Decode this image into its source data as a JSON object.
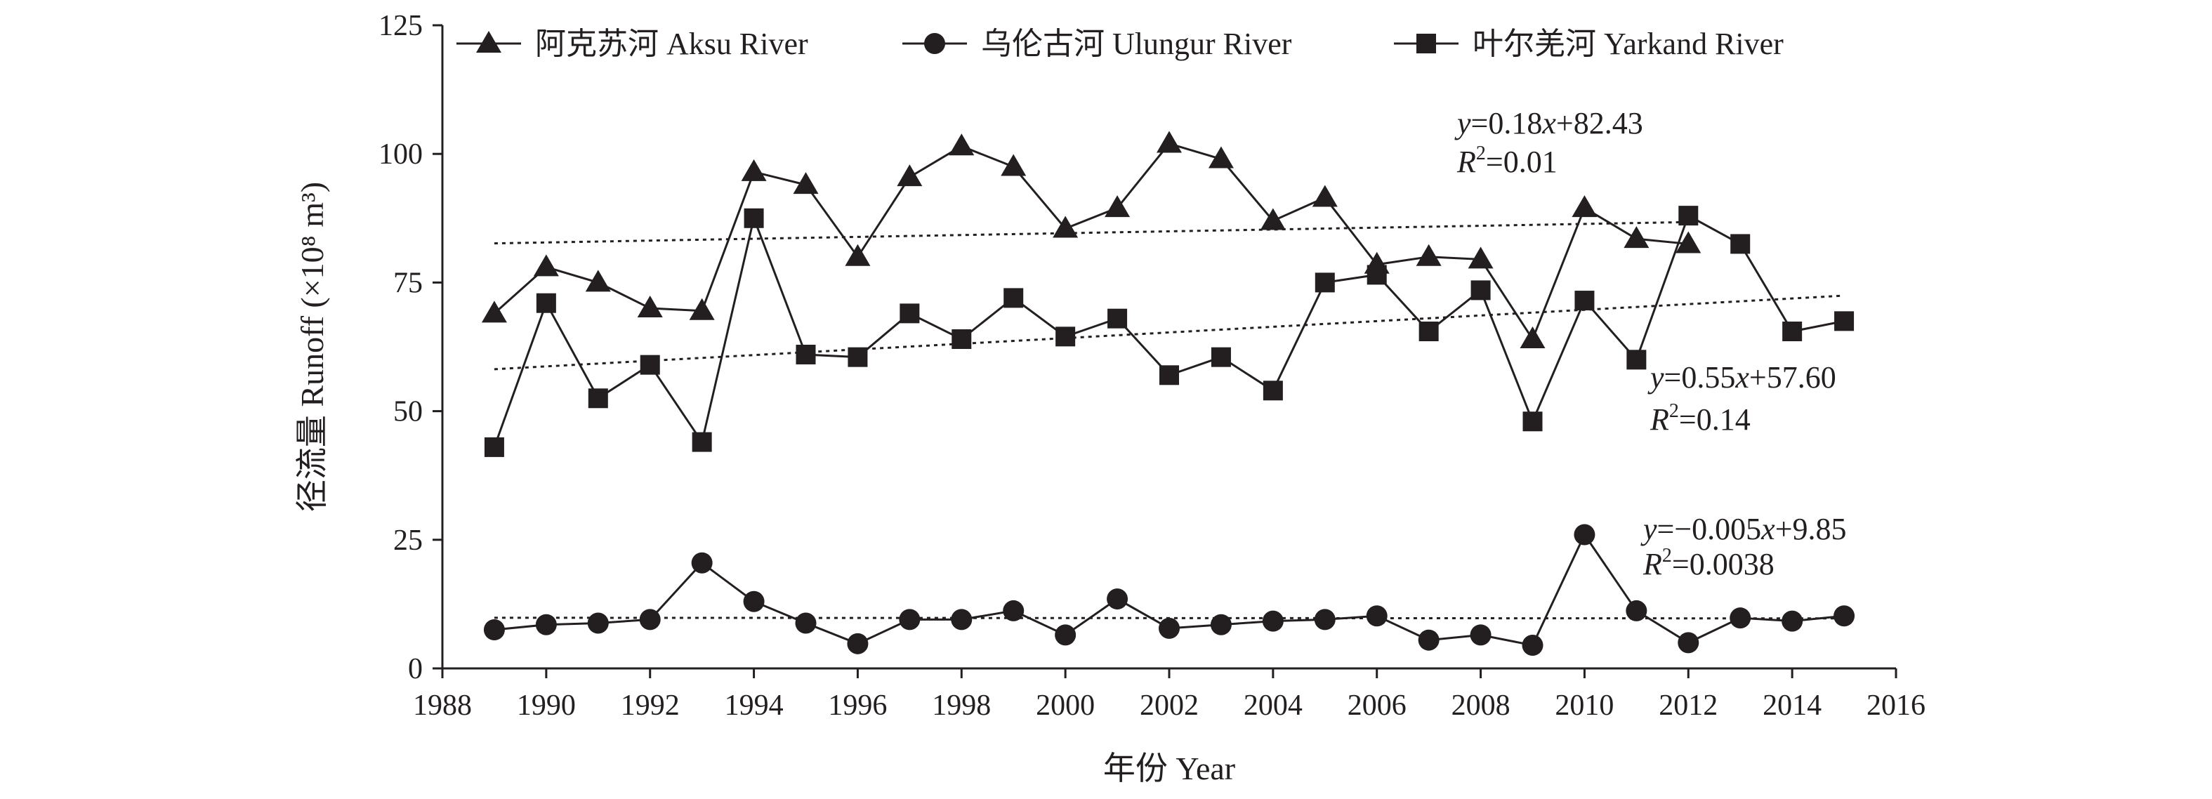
{
  "chart_data": {
    "type": "line",
    "xlabel": "年份 Year",
    "ylabel": "径流量 Runoff (×10⁸ m³)",
    "xlim": [
      1988,
      2016
    ],
    "ylim": [
      0,
      125
    ],
    "x_ticks": [
      "1988",
      "1990",
      "1992",
      "1994",
      "1996",
      "1998",
      "2000",
      "2002",
      "2004",
      "2006",
      "2008",
      "2010",
      "2012",
      "2014",
      "2016"
    ],
    "y_ticks": [
      "0",
      "25",
      "50",
      "75",
      "100",
      "125"
    ],
    "legend_position": "top",
    "series": [
      {
        "name": "阿克苏河 Aksu River",
        "marker": "triangle",
        "x": [
          1989,
          1990,
          1991,
          1992,
          1993,
          1994,
          1995,
          1996,
          1997,
          1998,
          1999,
          2000,
          2001,
          2002,
          2003,
          2004,
          2005,
          2006,
          2007,
          2008,
          2009,
          2010,
          2011,
          2012
        ],
        "values": [
          69,
          78,
          75,
          70,
          69.5,
          96.5,
          94,
          80,
          95.5,
          101.5,
          97.5,
          85.5,
          89.5,
          102,
          99,
          87,
          91.5,
          78.5,
          80,
          79.5,
          64,
          89.5,
          83.5,
          82.5
        ],
        "trend": {
          "slope": 0.18,
          "intercept": 82.43,
          "x_range": [
            1989,
            2012
          ]
        },
        "equation": {
          "y": "y",
          "eq": "=0.18",
          "x": "x",
          "rest": "+82.43",
          "R": "R",
          "sup": "2",
          "r2": "=0.01"
        }
      },
      {
        "name": "乌伦古河 Ulungur River",
        "marker": "circle",
        "x": [
          1989,
          1990,
          1991,
          1992,
          1993,
          1994,
          1995,
          1996,
          1997,
          1998,
          1999,
          2000,
          2001,
          2002,
          2003,
          2004,
          2005,
          2006,
          2007,
          2008,
          2009,
          2010,
          2011,
          2012,
          2013,
          2014,
          2015
        ],
        "values": [
          7.5,
          8.5,
          8.8,
          9.5,
          20.5,
          13,
          8.8,
          4.8,
          9.5,
          9.5,
          11.2,
          6.5,
          13.5,
          7.8,
          8.5,
          9.2,
          9.5,
          10.2,
          5.5,
          6.5,
          4.5,
          26,
          11.2,
          5,
          9.8,
          9.2,
          10.2
        ],
        "trend": {
          "slope": -0.005,
          "intercept": 9.85,
          "x_range": [
            1989,
            2015
          ]
        },
        "equation": {
          "y": "y",
          "eq": "=−0.005",
          "x": "x",
          "rest": "+9.85",
          "R": "R",
          "sup": "2",
          "r2": "=0.0038"
        }
      },
      {
        "name": "叶尔羌河 Yarkand River",
        "marker": "square",
        "x": [
          1989,
          1990,
          1991,
          1992,
          1993,
          1994,
          1995,
          1996,
          1997,
          1998,
          1999,
          2000,
          2001,
          2002,
          2003,
          2004,
          2005,
          2006,
          2007,
          2008,
          2009,
          2010,
          2011,
          2012,
          2013,
          2014,
          2015
        ],
        "values": [
          43,
          71,
          52.5,
          59,
          44,
          87.5,
          61,
          60.5,
          69,
          64,
          72,
          64.5,
          68,
          57,
          60.5,
          54,
          75,
          76.5,
          65.5,
          73.5,
          48,
          71.5,
          60,
          88,
          82.5,
          65.5,
          67.5
        ],
        "trend": {
          "slope": 0.55,
          "intercept": 57.6,
          "x_range": [
            1989,
            2015
          ]
        },
        "equation": {
          "y": "y",
          "eq": "=0.55",
          "x": "x",
          "rest": "+57.60",
          "R": "R",
          "sup": "2",
          "r2": "=0.14"
        }
      }
    ]
  }
}
